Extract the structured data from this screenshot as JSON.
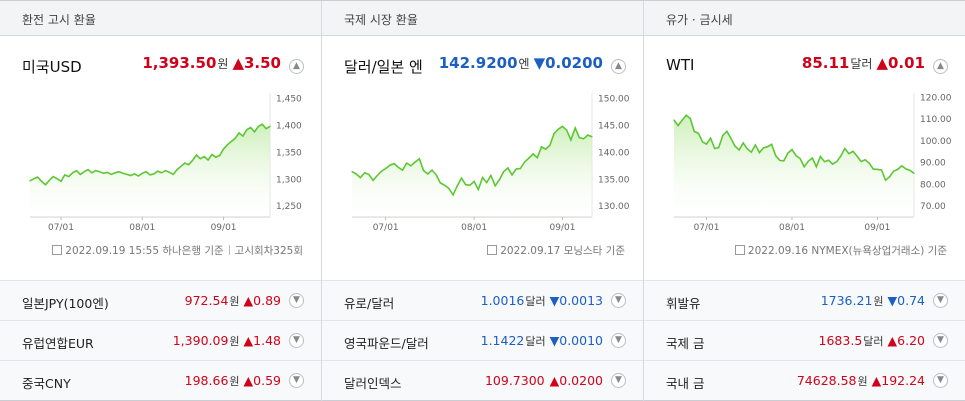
{
  "colors": {
    "up": "#d0021b",
    "down": "#1b5fc5",
    "line": "#5cc733",
    "fill": "#e3f6d7"
  },
  "panels": [
    {
      "header": "환전 고시 환율",
      "name": "미국USD",
      "price": "1,393.50",
      "unit": "원",
      "dir": "up",
      "arrow": "▲",
      "change": "3.50",
      "source": "2022.09.19 15:55 하나은행 기준",
      "source_extra": "고시회차325회",
      "rows": [
        {
          "name": "일본JPY(100엔)",
          "price": "972.54",
          "unit": "원",
          "dir": "up",
          "arrow": "▲",
          "change": "0.89"
        },
        {
          "name": "유럽연합EUR",
          "price": "1,390.09",
          "unit": "원",
          "dir": "up",
          "arrow": "▲",
          "change": "1.48"
        },
        {
          "name": "중국CNY",
          "price": "198.66",
          "unit": "원",
          "dir": "up",
          "arrow": "▲",
          "change": "0.59"
        }
      ]
    },
    {
      "header": "국제 시장 환율",
      "name": "달러/일본 엔",
      "price": "142.9200",
      "unit": "엔",
      "dir": "down",
      "arrow": "▼",
      "change": "0.0200",
      "source": "2022.09.17 모닝스타 기준",
      "source_extra": "",
      "rows": [
        {
          "name": "유로/달러",
          "price": "1.0016",
          "unit": "달러",
          "dir": "down",
          "arrow": "▼",
          "change": "0.0013"
        },
        {
          "name": "영국파운드/달러",
          "price": "1.1422",
          "unit": "달러",
          "dir": "down",
          "arrow": "▼",
          "change": "0.0010"
        },
        {
          "name": "달러인덱스",
          "price": "109.7300",
          "unit": "",
          "dir": "up",
          "arrow": "▲",
          "change": "0.0200"
        }
      ]
    },
    {
      "header": "유가 · 금시세",
      "name": "WTI",
      "price": "85.11",
      "unit": "달러",
      "dir": "up",
      "arrow": "▲",
      "change": "0.01",
      "source": "2022.09.16 NYMEX(뉴욕상업거래소) 기준",
      "source_extra": "",
      "rows": [
        {
          "name": "휘발유",
          "price": "1736.21",
          "unit": "원",
          "dir": "down",
          "arrow": "▼",
          "change": "0.74"
        },
        {
          "name": "국제 금",
          "price": "1683.5",
          "unit": "달러",
          "dir": "up",
          "arrow": "▲",
          "change": "6.20"
        },
        {
          "name": "국내 금",
          "price": "74628.58",
          "unit": "원",
          "dir": "up",
          "arrow": "▲",
          "change": "192.24"
        }
      ]
    }
  ],
  "chart_data": [
    {
      "type": "area",
      "x_ticks": [
        "07/01",
        "08/01",
        "09/01"
      ],
      "y_ticks": [
        "1,450",
        "1,400",
        "1,350",
        "1,300",
        "1,250"
      ],
      "ylim": [
        1230,
        1460
      ],
      "x_tick_index": [
        8,
        29,
        50
      ],
      "values": [
        1297,
        1301,
        1304,
        1296,
        1290,
        1298,
        1305,
        1301,
        1296,
        1308,
        1305,
        1312,
        1316,
        1309,
        1314,
        1318,
        1312,
        1316,
        1314,
        1311,
        1313,
        1309,
        1312,
        1314,
        1311,
        1309,
        1307,
        1310,
        1306,
        1311,
        1314,
        1308,
        1310,
        1315,
        1312,
        1316,
        1313,
        1309,
        1318,
        1324,
        1330,
        1327,
        1335,
        1345,
        1338,
        1342,
        1336,
        1346,
        1341,
        1344,
        1356,
        1364,
        1370,
        1376,
        1386,
        1380,
        1392,
        1396,
        1388,
        1398,
        1402,
        1394,
        1398
      ]
    },
    {
      "type": "area",
      "x_ticks": [
        "07/01",
        "08/01",
        "09/01"
      ],
      "y_ticks": [
        "150.00",
        "145.00",
        "140.00",
        "135.00",
        "130.00"
      ],
      "ylim": [
        128,
        151
      ],
      "x_tick_index": [
        8,
        29,
        50
      ],
      "values": [
        136.4,
        136.0,
        135.3,
        136.2,
        135.9,
        134.8,
        135.7,
        136.5,
        137.0,
        137.6,
        137.9,
        137.2,
        136.7,
        138.0,
        137.5,
        138.2,
        138.8,
        136.6,
        136.0,
        136.7,
        135.8,
        134.3,
        133.9,
        133.3,
        132.1,
        133.8,
        135.2,
        134.0,
        133.9,
        134.6,
        133.1,
        135.3,
        134.4,
        135.7,
        133.8,
        134.9,
        136.4,
        137.1,
        135.8,
        136.9,
        137.0,
        138.2,
        138.9,
        139.7,
        139.0,
        141.0,
        140.6,
        141.3,
        143.5,
        144.3,
        144.8,
        144.1,
        142.3,
        144.5,
        142.7,
        142.5,
        143.2,
        142.9
      ]
    },
    {
      "type": "area",
      "x_ticks": [
        "07/01",
        "08/01",
        "09/01"
      ],
      "y_ticks": [
        "120.00",
        "110.00",
        "100.00",
        "90.00",
        "80.00",
        "70.00"
      ],
      "ylim": [
        65,
        122
      ],
      "x_tick_index": [
        8,
        29,
        50
      ],
      "values": [
        109.6,
        107.0,
        109.5,
        111.8,
        110.3,
        104.3,
        103.5,
        99.5,
        98.5,
        101.2,
        96.5,
        96.9,
        102.5,
        104.4,
        101.2,
        97.6,
        95.8,
        99.0,
        96.4,
        94.8,
        98.1,
        94.6,
        96.8,
        97.3,
        98.4,
        93.2,
        91.0,
        90.8,
        94.4,
        96.0,
        93.2,
        91.9,
        88.1,
        90.6,
        92.1,
        88.1,
        92.8,
        90.4,
        91.1,
        89.3,
        90.4,
        93.0,
        96.5,
        94.1,
        95.2,
        92.9,
        90.5,
        91.3,
        89.7,
        87.0,
        86.9,
        86.6,
        81.9,
        83.5,
        86.1,
        86.9,
        88.5,
        87.1,
        86.4,
        85.1
      ]
    }
  ]
}
